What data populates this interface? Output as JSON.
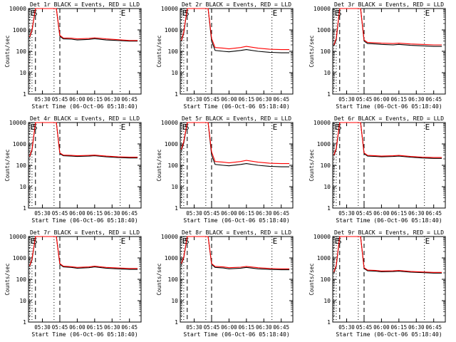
{
  "chart_data": [
    {
      "type": "line",
      "title": "Det 1r BLACK = Events, RED = LLD",
      "xlabel": "Start Time (06-Oct-06 05:18:40)",
      "ylabel": "Counts/sec",
      "yscale": "log",
      "ylim": [
        1,
        10000
      ],
      "x_ticks": [
        "05:30",
        "05:45",
        "06:00",
        "06:15",
        "06:30",
        "06:45"
      ],
      "y_ticks": [
        "1",
        "10",
        "100",
        "1000",
        "10000"
      ],
      "markers": [
        {
          "label": "E",
          "x": "05:19"
        },
        {
          "label": "S",
          "x": "05:21"
        },
        {
          "label": "",
          "x": "05:24"
        },
        {
          "label": "",
          "x": "05:40"
        },
        {
          "label": "",
          "x": "05:45"
        },
        {
          "label": "E",
          "x": "06:37"
        }
      ],
      "x": [
        "05:19",
        "05:21",
        "05:24",
        "05:28",
        "05:35",
        "05:42",
        "05:45",
        "05:48",
        "05:55",
        "06:00",
        "06:10",
        "06:15",
        "06:25",
        "06:35",
        "06:45",
        "06:52"
      ],
      "series": [
        {
          "name": "Events",
          "color": "#000000",
          "values": [
            450,
            900,
            10000,
            10000,
            10000,
            10000,
            500,
            380,
            370,
            340,
            360,
            390,
            340,
            320,
            300,
            300
          ]
        },
        {
          "name": "LLD",
          "color": "#ff0000",
          "values": [
            470,
            1000,
            10000,
            10000,
            10000,
            10000,
            560,
            420,
            410,
            380,
            400,
            430,
            380,
            350,
            320,
            320
          ]
        }
      ]
    },
    {
      "type": "line",
      "title": "Det 2r BLACK = Events, RED = LLD",
      "xlabel": "Start Time (06-Oct-06 05:18:40)",
      "ylabel": "Counts/sec",
      "yscale": "log",
      "ylim": [
        1,
        10000
      ],
      "x_ticks": [
        "05:30",
        "05:45",
        "06:00",
        "06:15",
        "06:30",
        "06:45"
      ],
      "y_ticks": [
        "1",
        "10",
        "100",
        "1000",
        "10000"
      ],
      "markers": [
        {
          "label": "E",
          "x": "05:19"
        },
        {
          "label": "S",
          "x": "05:21"
        },
        {
          "label": "",
          "x": "05:24"
        },
        {
          "label": "",
          "x": "05:40"
        },
        {
          "label": "",
          "x": "05:45"
        },
        {
          "label": "E",
          "x": "06:37"
        }
      ],
      "x": [
        "05:19",
        "05:21",
        "05:24",
        "05:28",
        "05:35",
        "05:42",
        "05:45",
        "05:48",
        "05:55",
        "06:00",
        "06:10",
        "06:15",
        "06:25",
        "06:35",
        "06:45",
        "06:52"
      ],
      "series": [
        {
          "name": "Events",
          "color": "#000000",
          "values": [
            300,
            700,
            10000,
            10000,
            10000,
            10000,
            300,
            110,
            100,
            95,
            110,
            120,
            100,
            90,
            85,
            85
          ]
        },
        {
          "name": "LLD",
          "color": "#ff0000",
          "values": [
            320,
            800,
            10000,
            10000,
            10000,
            10000,
            400,
            150,
            140,
            130,
            150,
            170,
            140,
            125,
            120,
            120
          ]
        }
      ]
    },
    {
      "type": "line",
      "title": "Det 3r BLACK = Events, RED = LLD",
      "xlabel": "Start Time (06-Oct-06 05:18:40)",
      "ylabel": "Counts/sec",
      "yscale": "log",
      "ylim": [
        1,
        10000
      ],
      "x_ticks": [
        "05:30",
        "05:45",
        "06:00",
        "06:15",
        "06:30",
        "06:45"
      ],
      "y_ticks": [
        "1",
        "10",
        "100",
        "1000",
        "10000"
      ],
      "markers": [
        {
          "label": "E",
          "x": "05:19"
        },
        {
          "label": "S",
          "x": "05:21"
        },
        {
          "label": "",
          "x": "05:24"
        },
        {
          "label": "",
          "x": "05:40"
        },
        {
          "label": "",
          "x": "05:45"
        },
        {
          "label": "E",
          "x": "06:37"
        }
      ],
      "x": [
        "05:19",
        "05:21",
        "05:24",
        "05:28",
        "05:35",
        "05:42",
        "05:45",
        "05:48",
        "05:55",
        "06:00",
        "06:10",
        "06:15",
        "06:25",
        "06:35",
        "06:45",
        "06:52"
      ],
      "series": [
        {
          "name": "Events",
          "color": "#000000",
          "values": [
            180,
            350,
            10000,
            10000,
            10000,
            10000,
            300,
            230,
            220,
            210,
            200,
            210,
            190,
            180,
            170,
            170
          ]
        },
        {
          "name": "LLD",
          "color": "#ff0000",
          "values": [
            200,
            400,
            10000,
            10000,
            10000,
            10000,
            340,
            260,
            250,
            240,
            230,
            240,
            220,
            210,
            200,
            200
          ]
        }
      ]
    },
    {
      "type": "line",
      "title": "Det 4r BLACK = Events, RED = LLD",
      "xlabel": "Start Time (06-Oct-06 05:18:40)",
      "ylabel": "Counts/sec",
      "yscale": "log",
      "ylim": [
        1,
        10000
      ],
      "x_ticks": [
        "05:30",
        "05:45",
        "06:00",
        "06:15",
        "06:30",
        "06:45"
      ],
      "y_ticks": [
        "1",
        "10",
        "100",
        "1000",
        "10000"
      ],
      "markers": [
        {
          "label": "E",
          "x": "05:19"
        },
        {
          "label": "S",
          "x": "05:21"
        },
        {
          "label": "",
          "x": "05:24"
        },
        {
          "label": "",
          "x": "05:40"
        },
        {
          "label": "",
          "x": "05:45"
        },
        {
          "label": "E",
          "x": "06:37"
        }
      ],
      "x": [
        "05:19",
        "05:21",
        "05:24",
        "05:28",
        "05:35",
        "05:42",
        "05:45",
        "05:48",
        "05:55",
        "06:00",
        "06:10",
        "06:15",
        "06:25",
        "06:35",
        "06:45",
        "06:52"
      ],
      "series": [
        {
          "name": "Events",
          "color": "#000000",
          "values": [
            240,
            500,
            10000,
            10000,
            10000,
            10000,
            350,
            280,
            270,
            260,
            270,
            280,
            250,
            230,
            220,
            220
          ]
        },
        {
          "name": "LLD",
          "color": "#ff0000",
          "values": [
            260,
            560,
            10000,
            10000,
            10000,
            10000,
            380,
            300,
            290,
            280,
            290,
            300,
            270,
            250,
            240,
            240
          ]
        }
      ]
    },
    {
      "type": "line",
      "title": "Det 5r BLACK = Events, RED = LLD",
      "xlabel": "Start Time (06-Oct-06 05:18:40)",
      "ylabel": "Counts/sec",
      "yscale": "log",
      "ylim": [
        1,
        10000
      ],
      "x_ticks": [
        "05:30",
        "05:45",
        "06:00",
        "06:15",
        "06:30",
        "06:45"
      ],
      "y_ticks": [
        "1",
        "10",
        "100",
        "1000",
        "10000"
      ],
      "markers": [
        {
          "label": "E",
          "x": "05:19"
        },
        {
          "label": "S",
          "x": "05:21"
        },
        {
          "label": "",
          "x": "05:24"
        },
        {
          "label": "",
          "x": "05:40"
        },
        {
          "label": "",
          "x": "05:45"
        },
        {
          "label": "E",
          "x": "06:37"
        }
      ],
      "x": [
        "05:19",
        "05:21",
        "05:24",
        "05:28",
        "05:35",
        "05:42",
        "05:45",
        "05:48",
        "05:55",
        "06:00",
        "06:10",
        "06:15",
        "06:25",
        "06:35",
        "06:45",
        "06:52"
      ],
      "series": [
        {
          "name": "Events",
          "color": "#000000",
          "values": [
            500,
            1100,
            10000,
            10000,
            10000,
            10000,
            300,
            110,
            100,
            95,
            110,
            120,
            100,
            90,
            85,
            85
          ]
        },
        {
          "name": "LLD",
          "color": "#ff0000",
          "values": [
            550,
            1300,
            10000,
            10000,
            10000,
            10000,
            420,
            150,
            140,
            130,
            150,
            170,
            140,
            125,
            120,
            120
          ]
        }
      ]
    },
    {
      "type": "line",
      "title": "Det 6r BLACK = Events, RED = LLD",
      "xlabel": "Start Time (06-Oct-06 05:18:40)",
      "ylabel": "Counts/sec",
      "yscale": "log",
      "ylim": [
        1,
        10000
      ],
      "x_ticks": [
        "05:30",
        "05:45",
        "06:00",
        "06:15",
        "06:30",
        "06:45"
      ],
      "y_ticks": [
        "1",
        "10",
        "100",
        "1000",
        "10000"
      ],
      "markers": [
        {
          "label": "E",
          "x": "05:19"
        },
        {
          "label": "S",
          "x": "05:21"
        },
        {
          "label": "",
          "x": "05:24"
        },
        {
          "label": "",
          "x": "05:40"
        },
        {
          "label": "",
          "x": "05:45"
        },
        {
          "label": "E",
          "x": "06:37"
        }
      ],
      "x": [
        "05:19",
        "05:21",
        "05:24",
        "05:28",
        "05:35",
        "05:42",
        "05:45",
        "05:48",
        "05:55",
        "06:00",
        "06:10",
        "06:15",
        "06:25",
        "06:35",
        "06:45",
        "06:52"
      ],
      "series": [
        {
          "name": "Events",
          "color": "#000000",
          "values": [
            280,
            550,
            10000,
            10000,
            10000,
            10000,
            350,
            270,
            260,
            250,
            260,
            270,
            240,
            220,
            210,
            210
          ]
        },
        {
          "name": "LLD",
          "color": "#ff0000",
          "values": [
            300,
            620,
            10000,
            10000,
            10000,
            10000,
            380,
            290,
            280,
            270,
            280,
            290,
            260,
            240,
            230,
            230
          ]
        }
      ]
    },
    {
      "type": "line",
      "title": "Det 7r BLACK = Events, RED = LLD",
      "xlabel": "Start Time (06-Oct-06 05:18:40)",
      "ylabel": "Counts/sec",
      "yscale": "log",
      "ylim": [
        1,
        10000
      ],
      "x_ticks": [
        "05:30",
        "05:45",
        "06:00",
        "06:15",
        "06:30",
        "06:45"
      ],
      "y_ticks": [
        "1",
        "10",
        "100",
        "1000",
        "10000"
      ],
      "markers": [
        {
          "label": "E",
          "x": "05:19"
        },
        {
          "label": "S",
          "x": "05:21"
        },
        {
          "label": "",
          "x": "05:24"
        },
        {
          "label": "",
          "x": "05:40"
        },
        {
          "label": "",
          "x": "05:45"
        },
        {
          "label": "E",
          "x": "06:37"
        }
      ],
      "x": [
        "05:19",
        "05:21",
        "05:24",
        "05:28",
        "05:35",
        "05:42",
        "05:45",
        "05:48",
        "05:55",
        "06:00",
        "06:10",
        "06:15",
        "06:25",
        "06:35",
        "06:45",
        "06:52"
      ],
      "series": [
        {
          "name": "Events",
          "color": "#000000",
          "values": [
            400,
            800,
            10000,
            10000,
            10000,
            10000,
            500,
            380,
            360,
            330,
            350,
            380,
            330,
            310,
            290,
            290
          ]
        },
        {
          "name": "LLD",
          "color": "#ff0000",
          "values": [
            420,
            900,
            10000,
            10000,
            10000,
            10000,
            540,
            410,
            390,
            360,
            380,
            410,
            360,
            340,
            320,
            320
          ]
        }
      ]
    },
    {
      "type": "line",
      "title": "Det 8r BLACK = Events, RED = LLD",
      "xlabel": "Start Time (06-Oct-06 05:18:40)",
      "ylabel": "Counts/sec",
      "yscale": "log",
      "ylim": [
        1,
        10000
      ],
      "x_ticks": [
        "05:30",
        "05:45",
        "06:00",
        "06:15",
        "06:30",
        "06:45"
      ],
      "y_ticks": [
        "1",
        "10",
        "100",
        "1000",
        "10000"
      ],
      "markers": [
        {
          "label": "E",
          "x": "05:19"
        },
        {
          "label": "S",
          "x": "05:21"
        },
        {
          "label": "",
          "x": "05:24"
        },
        {
          "label": "",
          "x": "05:40"
        },
        {
          "label": "",
          "x": "05:45"
        },
        {
          "label": "E",
          "x": "06:37"
        }
      ],
      "x": [
        "05:19",
        "05:21",
        "05:24",
        "05:28",
        "05:35",
        "05:42",
        "05:45",
        "05:48",
        "05:55",
        "06:00",
        "06:10",
        "06:15",
        "06:25",
        "06:35",
        "06:45",
        "06:52"
      ],
      "series": [
        {
          "name": "Events",
          "color": "#000000",
          "values": [
            500,
            1000,
            10000,
            10000,
            10000,
            10000,
            500,
            360,
            340,
            310,
            330,
            360,
            310,
            290,
            280,
            280
          ]
        },
        {
          "name": "LLD",
          "color": "#ff0000",
          "values": [
            550,
            1100,
            10000,
            10000,
            10000,
            10000,
            540,
            400,
            380,
            350,
            370,
            400,
            350,
            320,
            310,
            310
          ]
        }
      ]
    },
    {
      "type": "line",
      "title": "Det 9r BLACK = Events, RED = LLD",
      "xlabel": "Start Time (06-Oct-06 05:18:40)",
      "ylabel": "Counts/sec",
      "yscale": "log",
      "ylim": [
        1,
        10000
      ],
      "x_ticks": [
        "05:30",
        "05:45",
        "06:00",
        "06:15",
        "06:30",
        "06:45"
      ],
      "y_ticks": [
        "1",
        "10",
        "100",
        "1000",
        "10000"
      ],
      "markers": [
        {
          "label": "E",
          "x": "05:19"
        },
        {
          "label": "S",
          "x": "05:21"
        },
        {
          "label": "",
          "x": "05:24"
        },
        {
          "label": "",
          "x": "05:40"
        },
        {
          "label": "",
          "x": "05:45"
        },
        {
          "label": "E",
          "x": "06:37"
        }
      ],
      "x": [
        "05:19",
        "05:21",
        "05:24",
        "05:28",
        "05:35",
        "05:42",
        "05:45",
        "05:48",
        "05:55",
        "06:00",
        "06:10",
        "06:15",
        "06:25",
        "06:35",
        "06:45",
        "06:52"
      ],
      "series": [
        {
          "name": "Events",
          "color": "#000000",
          "values": [
            200,
            400,
            10000,
            10000,
            10000,
            10000,
            320,
            250,
            240,
            225,
            230,
            240,
            215,
            205,
            195,
            195
          ]
        },
        {
          "name": "LLD",
          "color": "#ff0000",
          "values": [
            220,
            450,
            10000,
            10000,
            10000,
            10000,
            350,
            270,
            260,
            245,
            250,
            260,
            235,
            220,
            210,
            210
          ]
        }
      ]
    }
  ]
}
